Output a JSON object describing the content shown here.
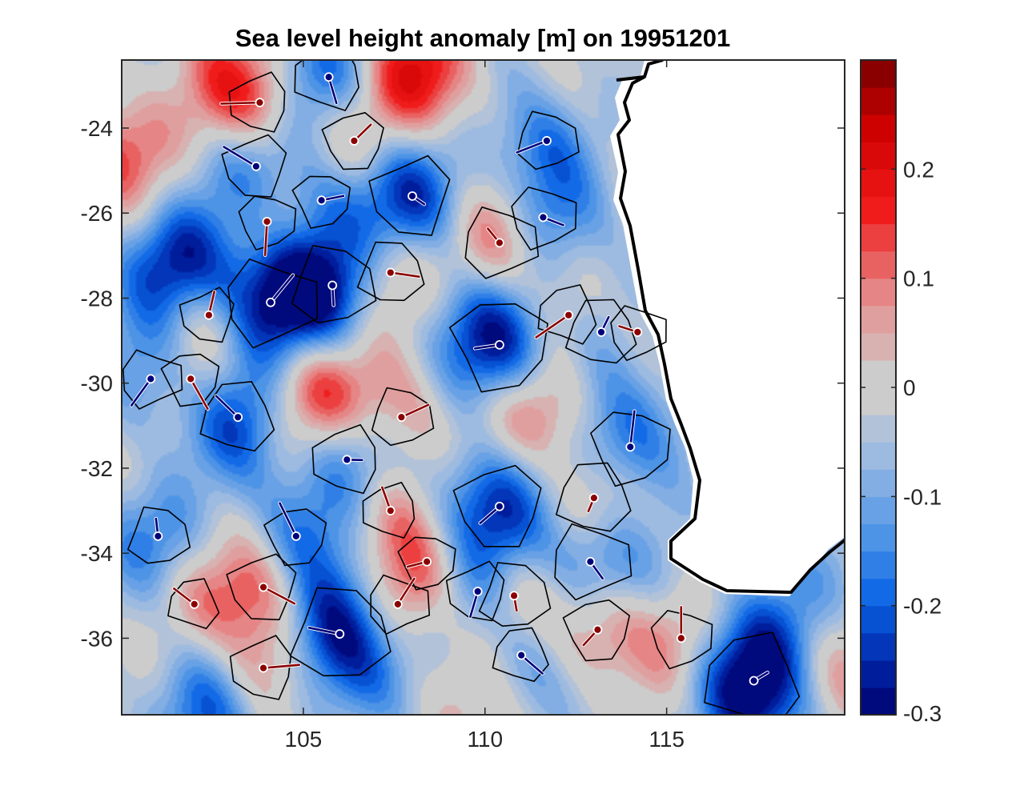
{
  "chart_data": {
    "type": "heatmap",
    "title": "Sea level height anomaly [m] on 19951201",
    "xlabel": "",
    "ylabel": "",
    "xlim": [
      100.0,
      119.9
    ],
    "ylim": [
      -37.8,
      -22.4
    ],
    "x_ticks": [
      105,
      110,
      115
    ],
    "x_tick_labels": [
      "105",
      "110",
      "115"
    ],
    "y_ticks": [
      -24,
      -26,
      -28,
      -30,
      -32,
      -34,
      -36
    ],
    "y_tick_labels": [
      "-24",
      "-26",
      "-28",
      "-30",
      "-32",
      "-34",
      "-36"
    ],
    "colorbar": {
      "range": [
        -0.3,
        0.3
      ],
      "ticks": [
        0.2,
        0.1,
        0,
        -0.1,
        -0.2,
        -0.3
      ],
      "tick_labels": [
        "0.2",
        "0.1",
        "0",
        "-0.1",
        "-0.2",
        "-0.3"
      ],
      "levels": 24,
      "colormap": "blue-gray-red diverging",
      "low_color": "#00006e",
      "mid_color": "#cccccc",
      "high_color": "#780000"
    },
    "land_mask": "Western Australia (white)",
    "eddies": [
      {
        "lon": 108.0,
        "lat": -25.6,
        "type": "cyclonic",
        "anomaly": -0.22
      },
      {
        "lon": 110.4,
        "lat": -29.1,
        "type": "cyclonic",
        "anomaly": -0.28
      },
      {
        "lon": 104.1,
        "lat": -28.1,
        "type": "cyclonic",
        "anomaly": -0.26
      },
      {
        "lon": 105.8,
        "lat": -27.7,
        "type": "cyclonic",
        "anomaly": -0.22
      },
      {
        "lon": 103.2,
        "lat": -30.8,
        "type": "cyclonic",
        "anomaly": -0.18
      },
      {
        "lon": 106.2,
        "lat": -31.8,
        "type": "cyclonic",
        "anomaly": -0.16
      },
      {
        "lon": 110.4,
        "lat": -32.9,
        "type": "cyclonic",
        "anomaly": -0.24
      },
      {
        "lon": 114.0,
        "lat": -31.5,
        "type": "cyclonic",
        "anomaly": -0.2
      },
      {
        "lon": 112.9,
        "lat": -34.2,
        "type": "cyclonic",
        "anomaly": -0.2
      },
      {
        "lon": 106.0,
        "lat": -35.9,
        "type": "cyclonic",
        "anomaly": -0.29
      },
      {
        "lon": 117.4,
        "lat": -37.0,
        "type": "cyclonic",
        "anomaly": -0.29
      },
      {
        "lon": 109.8,
        "lat": -34.9,
        "type": "cyclonic",
        "anomaly": -0.12
      },
      {
        "lon": 104.8,
        "lat": -33.6,
        "type": "cyclonic",
        "anomaly": -0.12
      },
      {
        "lon": 111.6,
        "lat": -26.1,
        "type": "cyclonic",
        "anomaly": -0.14
      },
      {
        "lon": 111.7,
        "lat": -24.3,
        "type": "cyclonic",
        "anomaly": -0.12
      },
      {
        "lon": 113.2,
        "lat": -28.8,
        "type": "cyclonic",
        "anomaly": -0.16
      },
      {
        "lon": 105.7,
        "lat": -22.8,
        "type": "cyclonic",
        "anomaly": -0.16
      },
      {
        "lon": 103.7,
        "lat": -24.9,
        "type": "cyclonic",
        "anomaly": -0.14
      },
      {
        "lon": 105.5,
        "lat": -25.7,
        "type": "cyclonic",
        "anomaly": -0.1
      },
      {
        "lon": 100.8,
        "lat": -29.9,
        "type": "cyclonic",
        "anomaly": -0.12
      },
      {
        "lon": 101.0,
        "lat": -33.6,
        "type": "cyclonic",
        "anomaly": -0.12
      },
      {
        "lon": 111.0,
        "lat": -36.4,
        "type": "cyclonic",
        "anomaly": -0.1
      },
      {
        "lon": 103.8,
        "lat": -23.4,
        "type": "anticyclonic",
        "anomaly": 0.12
      },
      {
        "lon": 106.4,
        "lat": -24.3,
        "type": "anticyclonic",
        "anomaly": 0.12
      },
      {
        "lon": 104.0,
        "lat": -26.2,
        "type": "anticyclonic",
        "anomaly": 0.1
      },
      {
        "lon": 110.4,
        "lat": -26.7,
        "type": "anticyclonic",
        "anomaly": 0.18
      },
      {
        "lon": 107.4,
        "lat": -27.4,
        "type": "anticyclonic",
        "anomaly": 0.14
      },
      {
        "lon": 112.3,
        "lat": -28.4,
        "type": "anticyclonic",
        "anomaly": 0.12
      },
      {
        "lon": 102.4,
        "lat": -28.4,
        "type": "anticyclonic",
        "anomaly": 0.1
      },
      {
        "lon": 101.9,
        "lat": -29.9,
        "type": "anticyclonic",
        "anomaly": 0.1
      },
      {
        "lon": 114.2,
        "lat": -28.8,
        "type": "anticyclonic",
        "anomaly": 0.1
      },
      {
        "lon": 107.7,
        "lat": -30.8,
        "type": "anticyclonic",
        "anomaly": 0.12
      },
      {
        "lon": 113.0,
        "lat": -32.7,
        "type": "anticyclonic",
        "anomaly": 0.18
      },
      {
        "lon": 107.4,
        "lat": -33.0,
        "type": "anticyclonic",
        "anomaly": 0.1
      },
      {
        "lon": 103.9,
        "lat": -34.8,
        "type": "anticyclonic",
        "anomaly": 0.16
      },
      {
        "lon": 108.4,
        "lat": -34.2,
        "type": "anticyclonic",
        "anomaly": 0.1
      },
      {
        "lon": 107.6,
        "lat": -35.2,
        "type": "anticyclonic",
        "anomaly": 0.12
      },
      {
        "lon": 110.8,
        "lat": -35.0,
        "type": "anticyclonic",
        "anomaly": 0.16
      },
      {
        "lon": 102.0,
        "lat": -35.2,
        "type": "anticyclonic",
        "anomaly": 0.08
      },
      {
        "lon": 103.9,
        "lat": -36.7,
        "type": "anticyclonic",
        "anomaly": 0.14
      },
      {
        "lon": 113.1,
        "lat": -35.8,
        "type": "anticyclonic",
        "anomaly": 0.14
      },
      {
        "lon": 115.4,
        "lat": -36.0,
        "type": "anticyclonic",
        "anomaly": 0.12
      }
    ],
    "background_features": [
      {
        "lon": 108.2,
        "lat": -22.7,
        "anomaly": 0.24
      },
      {
        "lon": 101.5,
        "lat": -27.2,
        "anomaly": -0.25
      },
      {
        "lon": 100.1,
        "lat": -24.6,
        "anomaly": 0.16
      },
      {
        "lon": 105.5,
        "lat": -30.1,
        "anomaly": 0.24
      },
      {
        "lon": 111.3,
        "lat": -30.6,
        "anomaly": 0.22
      },
      {
        "lon": 102.8,
        "lat": -22.9,
        "anomaly": 0.12
      },
      {
        "lon": 119.5,
        "lat": -36.5,
        "anomaly": 0.12
      },
      {
        "lon": 102.3,
        "lat": -37.7,
        "anomaly": -0.16
      },
      {
        "lon": 118.5,
        "lat": -35.5,
        "anomaly": -0.1
      },
      {
        "lon": 109.4,
        "lat": -37.5,
        "anomaly": 0.06
      }
    ]
  }
}
